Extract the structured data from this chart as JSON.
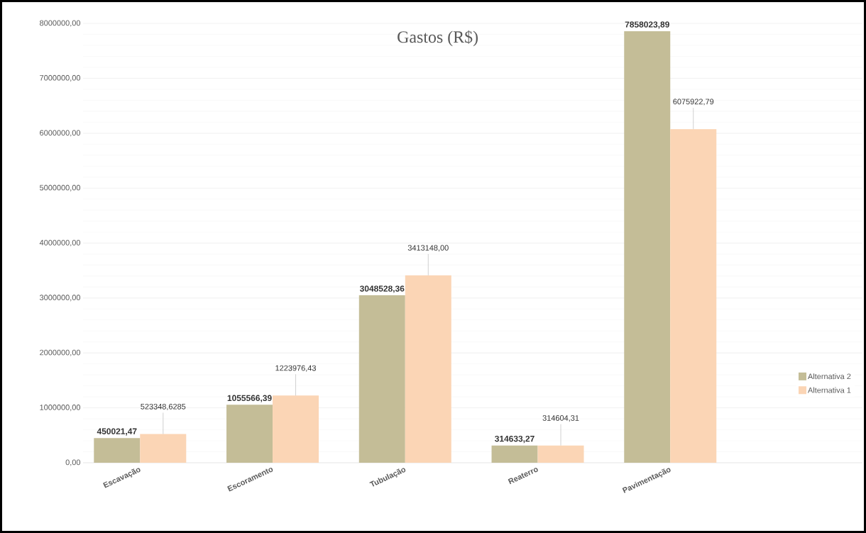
{
  "chart_data": {
    "type": "bar",
    "title": "Gastos (R$)",
    "categories": [
      "Escavação",
      "Escoramento",
      "Tubulação",
      "Reaterro",
      "Pavimentação"
    ],
    "series": [
      {
        "name": "Alternativa 2",
        "color": "#c4bd97",
        "values": [
          450021.47,
          1055566.39,
          3048528.36,
          314633.27,
          7858023.89
        ],
        "value_labels": [
          "450021,47",
          "1055566,39",
          "3048528,36",
          "314633,27",
          "7858023,89"
        ]
      },
      {
        "name": "Alternativa 1",
        "color": "#fbd5b5",
        "values": [
          523348.6285,
          1223976.43,
          3413148.0,
          314604.31,
          6075922.79
        ],
        "value_labels": [
          "523348,6285",
          "1223976,43",
          "3413148,00",
          "314604,31",
          "6075922,79"
        ]
      }
    ],
    "ylim": [
      0,
      8000000
    ],
    "yticks": [
      {
        "value": 0,
        "label": "0,00"
      },
      {
        "value": 1000000,
        "label": "1000000,00"
      },
      {
        "value": 2000000,
        "label": "2000000,00"
      },
      {
        "value": 3000000,
        "label": "3000000,00"
      },
      {
        "value": 4000000,
        "label": "4000000,00"
      },
      {
        "value": 5000000,
        "label": "5000000,00"
      },
      {
        "value": 6000000,
        "label": "6000000,00"
      },
      {
        "value": 7000000,
        "label": "7000000,00"
      },
      {
        "value": 8000000,
        "label": "8000000,00"
      }
    ],
    "grid": "y",
    "legend": "right"
  }
}
